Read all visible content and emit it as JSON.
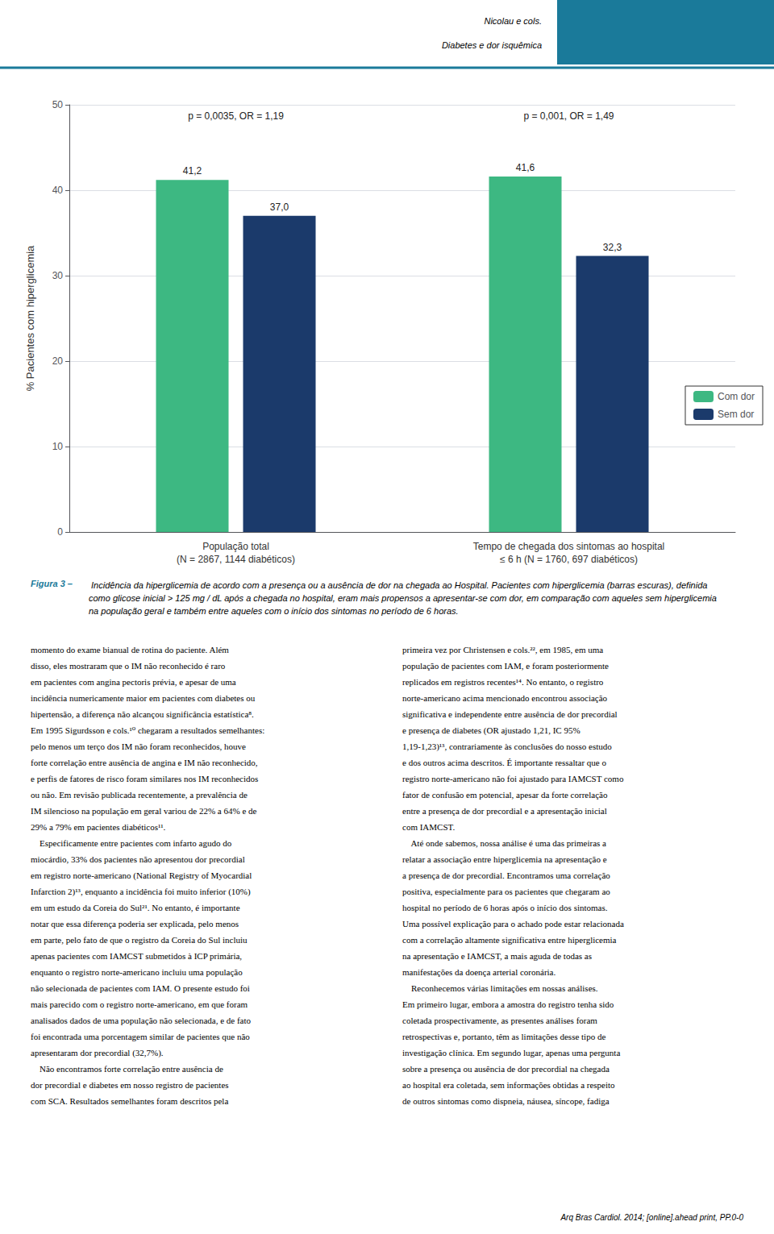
{
  "chart_data": {
    "type": "bar",
    "title": "Nicolau e cols.",
    "subtitle": "Diabetes e dor isquêmica",
    "header_color": "#1a7a9a",
    "categories": [
      "População total\n(N = 2867, 1144 diabéticos)",
      "Tempo de chegada dos sintomas ao hospital\n≤ 6 h (N = 1760, 697 diabéticos)"
    ],
    "series": [
      {
        "name": "Com dor",
        "color": "#3db882",
        "values": [
          41.2,
          41.6
        ],
        "value_labels": [
          "41,2",
          "41,6"
        ]
      },
      {
        "name": "Sem dor",
        "color": "#1b3a6b",
        "values": [
          37.0,
          32.3
        ],
        "value_labels": [
          "37,0",
          "32,3"
        ]
      }
    ],
    "annotations": [
      "p = 0,0035, OR = 1,19",
      "p = 0,001, OR = 1,49"
    ],
    "ylabel": "% Pacientes com hiperglicemia",
    "ylim": [
      0,
      50
    ],
    "yticks": [
      0,
      10,
      20,
      30,
      40,
      50
    ],
    "grid": true,
    "legend": "lower right",
    "data_labels": true,
    "caption_label": "Figura 3 –",
    "caption": " Incidência da hiperglicemia de acordo com a presença ou a ausência de dor na chegada ao Hospital. Pacientes com hiperglicemia (barras escuras), definida como glicose inicial > 125 mg / dL após a chegada no hospital, eram mais propensos a apresentar-se com dor, em comparação com aqueles sem hiperglicemia na população geral e também entre aqueles com o início dos sintomas no período de 6 horas.",
    "body_columns": [
      [
        "momento do exame bianual de rotina do paciente. Além",
        "disso, eles mostraram que o IM não reconhecido é raro",
        "em pacientes com angina pectoris prévia, e apesar de uma",
        "incidência numericamente maior em pacientes com diabetes ou",
        "hipertensão, a diferença não alcançou significância estatística⁸.",
        "Em 1995 Sigurdsson e cols.¹⁰ chegaram a resultados semelhantes:",
        "pelo menos um terço dos IM não foram reconhecidos, houve",
        "forte correlação entre ausência de angina e IM não reconhecido,",
        "e perfis de fatores de risco foram similares nos IM reconhecidos",
        "ou não. Em revisão publicada recentemente, a prevalência de",
        "IM silencioso na população em geral variou de 22% a 64% e de",
        "29% a 79% em pacientes diabéticos¹¹.",
        "    Especificamente entre pacientes com infarto agudo do",
        "miocárdio, 33% dos pacientes não apresentou dor precordial",
        "em registro norte-americano (National Registry of Myocardial",
        "Infarction 2)¹³, enquanto a incidência foi muito inferior (10%)",
        "em um estudo da Coreia do Sul²¹. No entanto, é importante",
        "notar que essa diferença poderia ser explicada, pelo menos",
        "em parte, pelo fato de que o registro da Coreia do Sul incluiu",
        "apenas pacientes com IAMCST submetidos à ICP primária,",
        "enquanto o registro norte-americano incluiu uma população",
        "não selecionada de pacientes com IAM. O presente estudo foi",
        "mais parecido com o registro norte-americano, em que foram",
        "analisados dados de uma população não selecionada, e de fato",
        "foi encontrada uma porcentagem similar de pacientes que não",
        "apresentaram dor precordial (32,7%).",
        "    Não encontramos forte correlação entre ausência de",
        "dor precordial e diabetes em nosso registro de pacientes",
        "com SCA. Resultados semelhantes foram descritos pela"
      ],
      [
        "primeira vez por Christensen e cols.²², em 1985, em uma",
        "população de pacientes com IAM, e foram posteriormente",
        "replicados em registros recentes¹⁴. No entanto, o registro",
        "norte-americano acima mencionado encontrou associação",
        "significativa e independente entre ausência de dor precordial",
        "e presença de diabetes (OR ajustado 1,21, IC 95%",
        "1,19-1,23)¹³, contrariamente às conclusões do nosso estudo",
        "e dos outros acima descritos. É importante ressaltar que o",
        "registro norte-americano não foi ajustado para IAMCST como",
        "fator de confusão em potencial, apesar da forte correlação",
        "entre a presença de dor precordial e a apresentação inicial",
        "com IAMCST.",
        "    Até onde sabemos, nossa análise é uma das primeiras a",
        "relatar a associação entre hiperglicemia na apresentação e",
        "a presença de dor precordial. Encontramos uma correlação",
        "positiva, especialmente para os pacientes que chegaram ao",
        "hospital no período de 6 horas após o início dos sintomas.",
        "Uma possível explicação para o achado pode estar relacionada",
        "com a correlação altamente significativa entre hiperglicemia",
        "na apresentação e IAMCST, a mais aguda de todas as",
        "manifestações da doença arterial coronária.",
        "    Reconhecemos várias limitações em nossas análises.",
        "Em primeiro lugar, embora a amostra do registro tenha sido",
        "coletada prospectivamente, as presentes análises foram",
        "retrospectivas e, portanto, têm as limitações desse tipo de",
        "investigação clínica. Em segundo lugar, apenas uma pergunta",
        "sobre a presença ou ausência de dor precordial na chegada",
        "ao hospital era coletada, sem informações obtidas a respeito",
        "de outros sintomas como dispneia, náusea, síncope, fadiga"
      ]
    ],
    "footer": "Arq Bras Cardiol. 2014; [online].ahead print, PP.0-0"
  }
}
